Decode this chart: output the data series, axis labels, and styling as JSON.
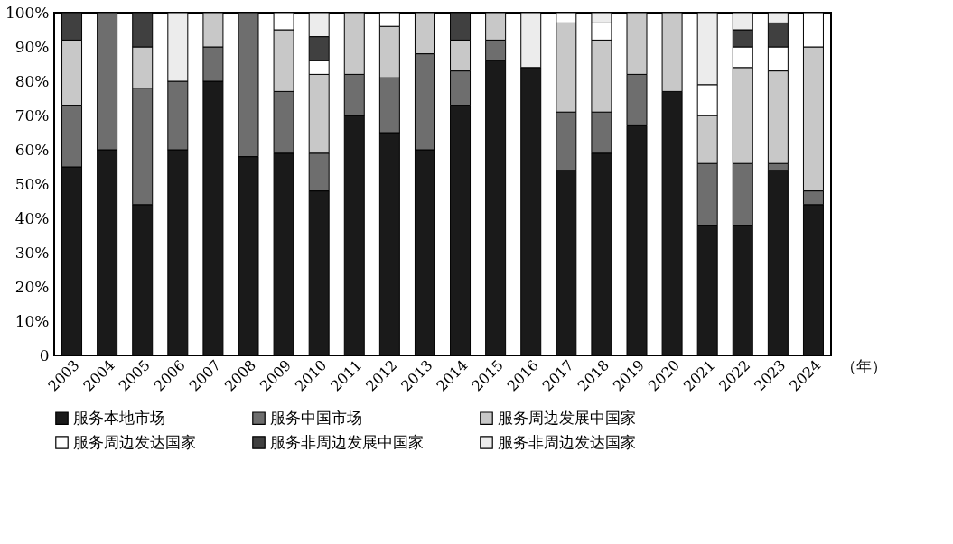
{
  "chart_data": {
    "type": "bar",
    "stacked": true,
    "xlabel": "（年）",
    "categories": [
      "2003",
      "2004",
      "2005",
      "2006",
      "2007",
      "2008",
      "2009",
      "2010",
      "2011",
      "2012",
      "2013",
      "2014",
      "2015",
      "2016",
      "2017",
      "2018",
      "2019",
      "2020",
      "2021",
      "2022",
      "2023",
      "2024"
    ],
    "series": [
      {
        "name": "服务本地市场",
        "color": "#1a1a1a",
        "values": [
          55,
          60,
          44,
          60,
          80,
          58,
          59,
          48,
          70,
          65,
          60,
          73,
          86,
          84,
          54,
          59,
          67,
          77,
          38,
          38,
          54,
          44
        ]
      },
      {
        "name": "服务中国市场",
        "color": "#6e6e6e",
        "values": [
          18,
          40,
          34,
          20,
          10,
          42,
          18,
          11,
          12,
          16,
          28,
          10,
          6,
          null,
          17,
          12,
          15,
          null,
          18,
          18,
          2,
          4
        ]
      },
      {
        "name": "服务周边发展中国家",
        "color": "#c8c8c8",
        "values": [
          19,
          null,
          12,
          null,
          10,
          null,
          18,
          23,
          18,
          15,
          12,
          9,
          8,
          null,
          26,
          21,
          18,
          23,
          14,
          28,
          27,
          42
        ]
      },
      {
        "name": "服务周边发达国家",
        "color": "#ffffff",
        "values": [
          null,
          null,
          null,
          null,
          null,
          null,
          5,
          4,
          null,
          4,
          null,
          null,
          null,
          null,
          3,
          5,
          null,
          null,
          9,
          6,
          7,
          10
        ]
      },
      {
        "name": "服务非周边发展中国家",
        "color": "#404040",
        "values": [
          8,
          null,
          10,
          null,
          null,
          null,
          null,
          7,
          null,
          null,
          null,
          8,
          null,
          null,
          null,
          null,
          null,
          null,
          null,
          5,
          7,
          null
        ]
      },
      {
        "name": "服务非周边发达国家",
        "color": "#ececec",
        "values": [
          null,
          null,
          null,
          20,
          null,
          null,
          null,
          7,
          null,
          null,
          null,
          null,
          null,
          16,
          null,
          3,
          null,
          null,
          21,
          5,
          3,
          null
        ]
      }
    ],
    "ylim": [
      0,
      100
    ],
    "yticks": [
      0,
      {
        "value": 10,
        "label": "10%"
      },
      {
        "value": 20,
        "label": "20%"
      },
      {
        "value": 30,
        "label": "30%"
      },
      {
        "value": 40,
        "label": "40%"
      },
      {
        "value": 50,
        "label": "50%"
      },
      {
        "value": 60,
        "label": "60%"
      },
      {
        "value": 70,
        "label": "70%"
      },
      {
        "value": 80,
        "label": "80%"
      },
      {
        "value": 90,
        "label": "90%"
      },
      {
        "value": 100,
        "label": "100%"
      }
    ],
    "grid": false,
    "legend": "bottom"
  }
}
